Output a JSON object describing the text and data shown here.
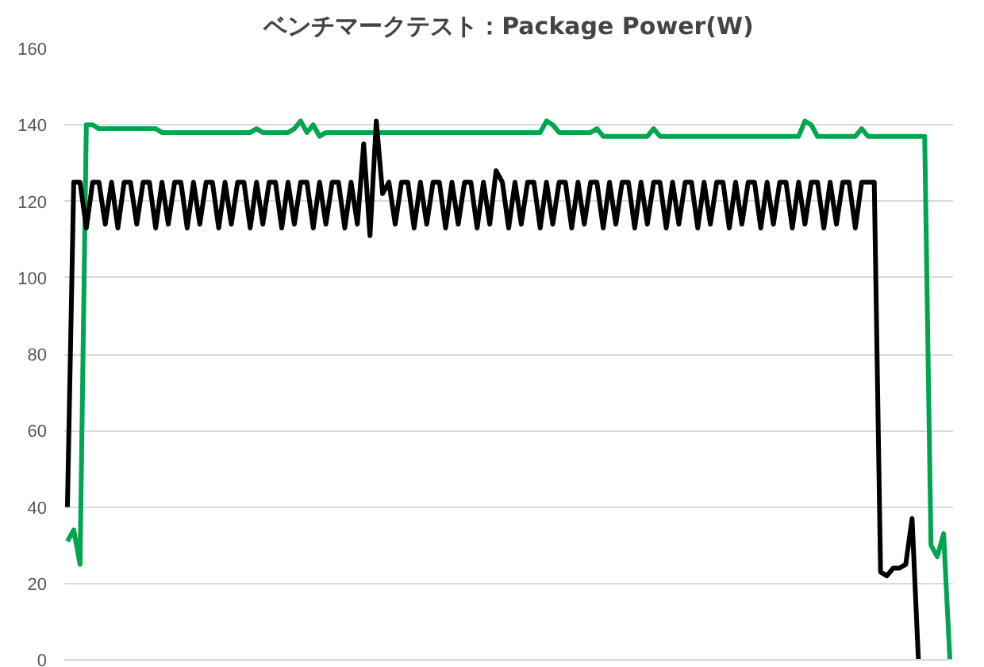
{
  "chart_data": {
    "type": "line",
    "title": "ベンチマークテスト：Package Power(W)",
    "categories": [
      null,
      null,
      null,
      null,
      null,
      null,
      null,
      null,
      null,
      null,
      null,
      null,
      null,
      null,
      null,
      null,
      null,
      null,
      null,
      null,
      null,
      null,
      null,
      null,
      null,
      null,
      null,
      null,
      null,
      null,
      null,
      null,
      null,
      null,
      null,
      null,
      null,
      null,
      null,
      null,
      null,
      null,
      null,
      null,
      null,
      null,
      null,
      null,
      null,
      null,
      null,
      null,
      null,
      null,
      null,
      null,
      null,
      null,
      null,
      null,
      null,
      null,
      null,
      null,
      null,
      null,
      null,
      null,
      null,
      null,
      null,
      null,
      null,
      null,
      null,
      null,
      null,
      null,
      null,
      null,
      null,
      null,
      null,
      null,
      null,
      null,
      null,
      null,
      null,
      null,
      null,
      null,
      null,
      null,
      null,
      null,
      null,
      null,
      null,
      null,
      null,
      null,
      null,
      null,
      null,
      null,
      null,
      null,
      null,
      null,
      null,
      null,
      null,
      null,
      null,
      null,
      null,
      null,
      null,
      null,
      null,
      null,
      null,
      null,
      null,
      null,
      null,
      null,
      null,
      null,
      null,
      null,
      null,
      null,
      null,
      null,
      null,
      null,
      null,
      null,
      null
    ],
    "series": [
      {
        "color": "#00a550",
        "values": [
          31,
          34,
          25,
          140,
          140,
          139,
          139,
          139,
          139,
          139,
          139,
          139,
          139,
          139,
          139,
          138,
          138,
          138,
          138,
          138,
          138,
          138,
          138,
          138,
          138,
          138,
          138,
          138,
          138,
          138,
          139,
          138,
          138,
          138,
          138,
          138,
          139,
          141,
          138,
          140,
          137,
          138,
          138,
          138,
          138,
          138,
          138,
          138,
          138,
          138,
          138,
          138,
          138,
          138,
          138,
          138,
          138,
          138,
          138,
          138,
          138,
          138,
          138,
          138,
          138,
          138,
          138,
          138,
          138,
          138,
          138,
          138,
          138,
          138,
          138,
          138,
          141,
          140,
          138,
          138,
          138,
          138,
          138,
          138,
          139,
          137,
          137,
          137,
          137,
          137,
          137,
          137,
          137,
          139,
          137,
          137,
          137,
          137,
          137,
          137,
          137,
          137,
          137,
          137,
          137,
          137,
          137,
          137,
          137,
          137,
          137,
          137,
          137,
          137,
          137,
          137,
          137,
          141,
          140,
          137,
          137,
          137,
          137,
          137,
          137,
          137,
          139,
          137,
          137,
          137,
          137,
          137,
          137,
          137,
          137,
          137,
          137,
          30,
          27,
          33,
          0
        ]
      },
      {
        "color": "#000000",
        "values": [
          40,
          125,
          125,
          113,
          125,
          125,
          114,
          125,
          113,
          125,
          125,
          114,
          125,
          125,
          113,
          125,
          114,
          125,
          125,
          113,
          125,
          114,
          125,
          125,
          113,
          125,
          114,
          125,
          125,
          113,
          125,
          114,
          125,
          125,
          113,
          125,
          114,
          125,
          125,
          113,
          125,
          114,
          125,
          125,
          113,
          125,
          114,
          135,
          111,
          141,
          122,
          125,
          114,
          125,
          125,
          113,
          125,
          114,
          125,
          125,
          113,
          125,
          114,
          125,
          125,
          113,
          125,
          114,
          128,
          125,
          113,
          125,
          114,
          125,
          125,
          113,
          125,
          114,
          125,
          125,
          113,
          125,
          114,
          125,
          125,
          113,
          125,
          114,
          125,
          125,
          113,
          125,
          114,
          125,
          125,
          113,
          125,
          114,
          125,
          125,
          113,
          125,
          114,
          125,
          125,
          113,
          125,
          114,
          125,
          125,
          113,
          125,
          114,
          125,
          125,
          113,
          125,
          114,
          125,
          125,
          113,
          125,
          114,
          125,
          125,
          113,
          125,
          125,
          125,
          23,
          22,
          24,
          24,
          25,
          37,
          0,
          null,
          null,
          null,
          null,
          null
        ]
      }
    ],
    "ylim": [
      0,
      160
    ],
    "yticks": [
      0,
      20,
      40,
      60,
      80,
      100,
      120,
      140,
      160
    ],
    "grid": "y",
    "tick_labels": "y",
    "line_style": "solid"
  }
}
